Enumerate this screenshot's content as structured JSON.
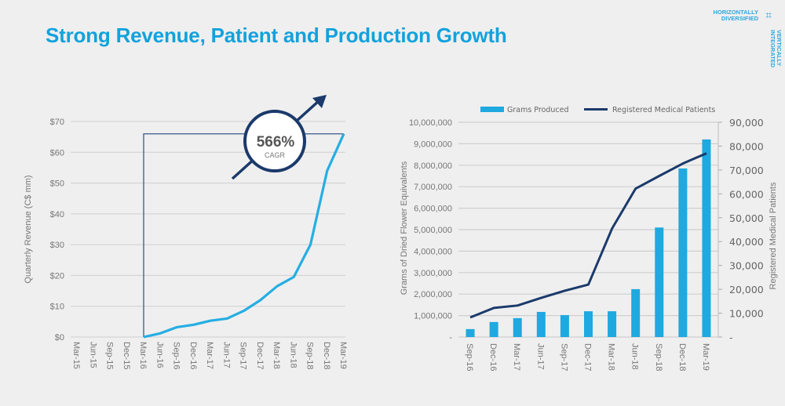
{
  "page": {
    "title": "Strong Revenue, Patient and Production Growth",
    "logo": {
      "line1": "HORIZONTALLY",
      "line2": "DIVERSIFIED",
      "vertical_line1": "VERTICALLY",
      "vertical_line2": "INTEGRATED",
      "icon": "grid-cross-icon"
    },
    "colors": {
      "title": "#12a2dc",
      "bar": "#1ea9e0",
      "line_dark": "#1b3a6b",
      "revenue_line": "#25aee3",
      "grid": "#cfcfcf"
    }
  },
  "chart_data": [
    {
      "type": "line",
      "title": "",
      "xlabel": "",
      "ylabel": "Quarterly Revenue (C$ mm)",
      "categories": [
        "Mar-15",
        "Jun-15",
        "Sep-15",
        "Dec-15",
        "Mar-16",
        "Jun-16",
        "Sep-16",
        "Dec-16",
        "Mar-17",
        "Jun-17",
        "Sep-17",
        "Dec-17",
        "Mar-18",
        "Jun-18",
        "Sep-18",
        "Dec-18",
        "Mar-19"
      ],
      "series": [
        {
          "name": "Quarterly Revenue",
          "values": [
            null,
            null,
            null,
            null,
            0,
            1.2,
            3.2,
            4.0,
            5.3,
            6.0,
            8.5,
            12.0,
            16.5,
            19.5,
            30.0,
            54.0,
            66.0
          ]
        }
      ],
      "ylim": [
        0,
        70
      ],
      "yticks": [
        0,
        10,
        20,
        30,
        40,
        50,
        60,
        70
      ],
      "ytick_labels": [
        "$0",
        "$10",
        "$20",
        "$30",
        "$40",
        "$50",
        "$60",
        "$70"
      ],
      "grid": true,
      "annotation": {
        "value": "566%",
        "label": "CAGR",
        "from": "Mar-16",
        "to": "Mar-19"
      }
    },
    {
      "type": "bar",
      "title": "",
      "categories": [
        "Sep-16",
        "Dec-16",
        "Mar-17",
        "Jun-17",
        "Sep-17",
        "Dec-17",
        "Mar-18",
        "Jun-18",
        "Sep-18",
        "Dec-18",
        "Mar-19"
      ],
      "series": [
        {
          "name": "Grams Produced",
          "type": "bar",
          "axis": "left",
          "values": [
            370000,
            700000,
            880000,
            1170000,
            1020000,
            1200000,
            1200000,
            2230000,
            5100000,
            7850000,
            9200000
          ]
        },
        {
          "name": "Registered Medical Patients",
          "type": "line",
          "axis": "right",
          "values": [
            8200,
            12200,
            13200,
            16400,
            19400,
            22000,
            45400,
            62200,
            67500,
            72700,
            77000
          ]
        }
      ],
      "ylabel": "Grams of Dried Flower Equivalents",
      "ylabel_right": "Registered Medical Patients",
      "ylim": [
        0,
        10000000
      ],
      "ylim_right": [
        0,
        90000
      ],
      "yticks": [
        "-",
        "1,000,000",
        "2,000,000",
        "3,000,000",
        "4,000,000",
        "5,000,000",
        "6,000,000",
        "7,000,000",
        "8,000,000",
        "9,000,000",
        "10,000,000"
      ],
      "yticks_right": [
        "-",
        "10,000",
        "20,000",
        "30,000",
        "40,000",
        "50,000",
        "60,000",
        "70,000",
        "80,000",
        "90,000"
      ],
      "grid": true,
      "legend": "top"
    }
  ]
}
